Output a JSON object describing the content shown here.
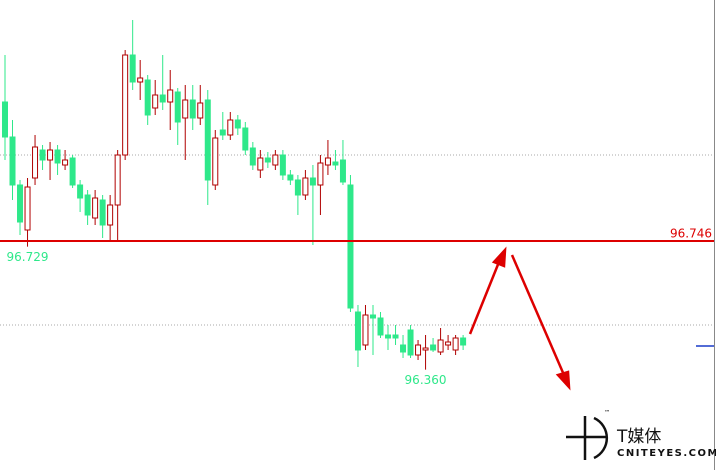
{
  "chart_data": {
    "type": "candlestick",
    "ylim": [
      96.059,
      97.469
    ],
    "up_color": "#b00000",
    "down_color": "#2ee88a",
    "grid_levels": [
      97.004,
      96.494
    ],
    "hline": {
      "value": 96.746,
      "color": "#dd0000"
    },
    "price_marker": {
      "value": 96.431,
      "color": "#1a3cc8"
    },
    "low_labels": [
      96.729,
      {
        "value": 96.36,
        "label": "96.360"
      }
    ],
    "open": [
      97.163,
      97.058,
      96.914,
      96.779,
      96.935,
      97.019,
      96.989,
      97.019,
      96.974,
      96.995,
      96.914,
      96.884,
      96.815,
      96.869,
      96.794,
      96.854,
      97.004,
      97.304,
      97.223,
      97.229,
      97.145,
      97.184,
      97.163,
      97.193,
      97.115,
      97.169,
      97.115,
      97.169,
      96.914,
      97.079,
      97.064,
      97.109,
      97.085,
      97.025,
      96.959,
      96.995,
      96.974,
      97.004,
      96.944,
      96.929,
      96.884,
      96.935,
      96.914,
      96.974,
      96.983,
      96.989,
      96.914,
      96.533,
      96.434,
      96.524,
      96.515,
      96.464,
      96.464,
      96.434,
      96.479,
      96.404,
      96.419,
      96.434,
      96.413,
      96.434,
      96.419,
      96.455
    ],
    "high": [
      97.304,
      97.109,
      96.929,
      96.935,
      97.064,
      97.034,
      97.043,
      97.034,
      97.019,
      97.004,
      96.929,
      96.899,
      96.899,
      96.884,
      96.884,
      97.019,
      97.319,
      97.409,
      97.289,
      97.244,
      97.229,
      97.304,
      97.259,
      97.205,
      97.214,
      97.214,
      97.214,
      97.199,
      97.079,
      97.133,
      97.133,
      97.124,
      97.103,
      97.043,
      97.019,
      97.013,
      97.019,
      97.019,
      96.959,
      96.944,
      96.959,
      96.974,
      97.004,
      97.049,
      97.019,
      97.049,
      96.944,
      96.554,
      96.554,
      96.554,
      96.533,
      96.494,
      96.494,
      96.464,
      96.494,
      96.449,
      96.464,
      96.455,
      96.485,
      96.464,
      96.464,
      96.464
    ],
    "low": [
      96.989,
      96.869,
      96.764,
      96.729,
      96.914,
      96.959,
      96.929,
      96.944,
      96.959,
      96.905,
      96.833,
      96.794,
      96.794,
      96.755,
      96.749,
      96.746,
      96.989,
      97.199,
      97.169,
      97.094,
      97.124,
      97.139,
      97.079,
      97.034,
      96.989,
      97.079,
      97.094,
      96.854,
      96.899,
      97.049,
      97.049,
      97.064,
      97.004,
      96.959,
      96.935,
      96.965,
      96.959,
      96.929,
      96.914,
      96.824,
      96.869,
      96.734,
      96.824,
      96.944,
      96.959,
      96.914,
      96.533,
      96.368,
      96.419,
      96.404,
      96.455,
      96.419,
      96.434,
      96.395,
      96.395,
      96.389,
      96.36,
      96.413,
      96.404,
      96.419,
      96.404,
      96.419
    ],
    "close": [
      97.058,
      96.914,
      96.803,
      96.908,
      97.028,
      96.989,
      97.019,
      96.98,
      96.989,
      96.914,
      96.875,
      96.824,
      96.875,
      96.794,
      96.854,
      97.004,
      97.304,
      97.223,
      97.235,
      97.124,
      97.184,
      97.163,
      97.199,
      97.103,
      97.169,
      97.115,
      97.16,
      96.929,
      97.055,
      97.064,
      97.109,
      97.085,
      97.019,
      96.974,
      96.995,
      96.983,
      97.004,
      96.944,
      96.929,
      96.884,
      96.935,
      96.914,
      96.98,
      96.995,
      96.974,
      96.923,
      96.545,
      96.419,
      96.524,
      96.515,
      96.464,
      96.455,
      96.455,
      96.413,
      96.404,
      96.434,
      96.425,
      96.419,
      96.449,
      96.443,
      96.455,
      96.434
    ]
  },
  "watermark": {
    "mark": "™",
    "name": "T媒体",
    "site": "CNITEYES.COM"
  }
}
